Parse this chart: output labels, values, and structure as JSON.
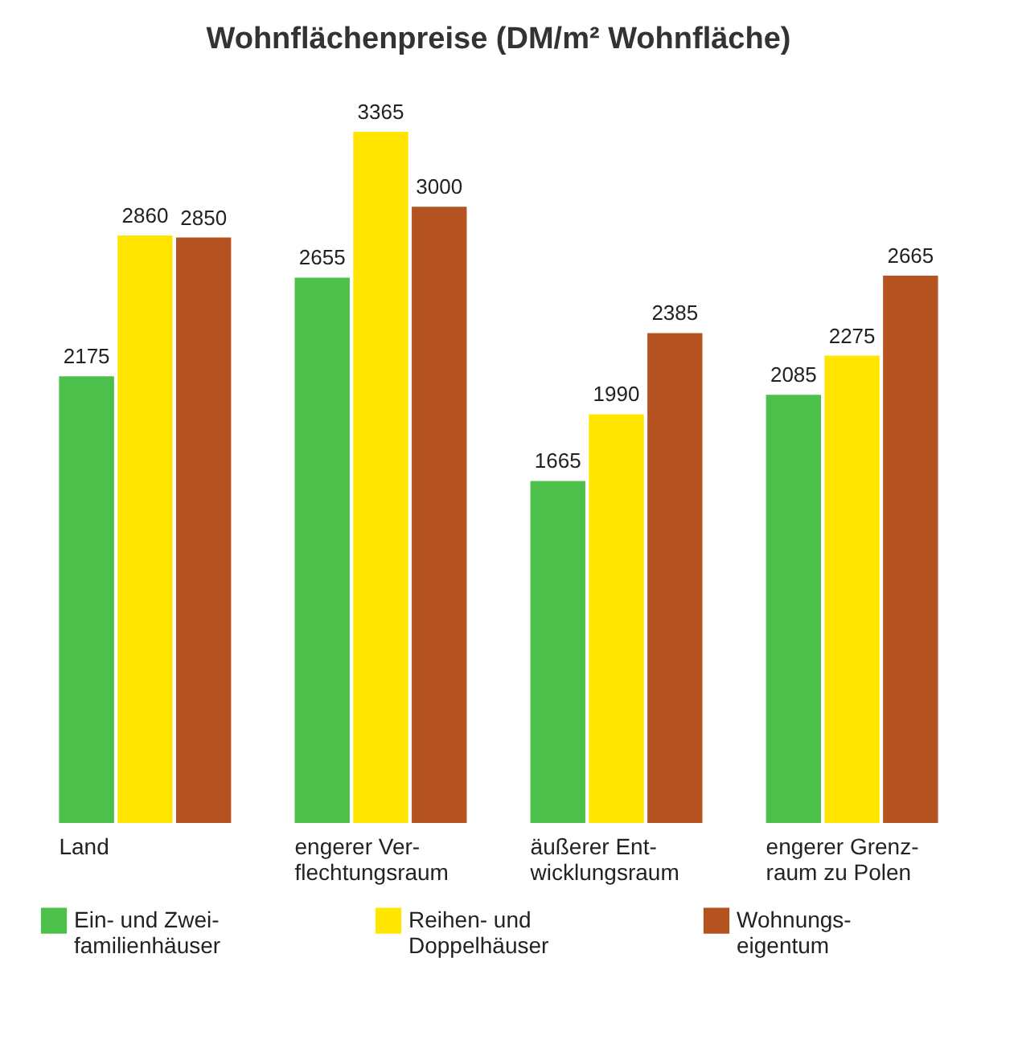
{
  "chart_data": {
    "type": "bar",
    "title": "Wohnflächenpreise (DM/m² Wohnfläche)",
    "categories": [
      "Land",
      "engerer Ver-\nflechtungsraum",
      "äußerer Ent-\nwicklungsraum",
      "engerer Grenz-\nraum zu Polen"
    ],
    "series": [
      {
        "name": "Ein- und Zwei-\nfamilienhäuser",
        "color": "#4cc04a",
        "values": [
          2175,
          2655,
          1665,
          2085
        ]
      },
      {
        "name": "Reihen- und\nDoppelhäuser",
        "color": "#ffe500",
        "values": [
          2860,
          3365,
          1990,
          2275
        ]
      },
      {
        "name": "Wohnungs-\neigentum",
        "color": "#b4531f",
        "values": [
          2850,
          3000,
          2385,
          2665
        ]
      }
    ],
    "data_labels": true,
    "legend": "bottom",
    "grid": false
  }
}
